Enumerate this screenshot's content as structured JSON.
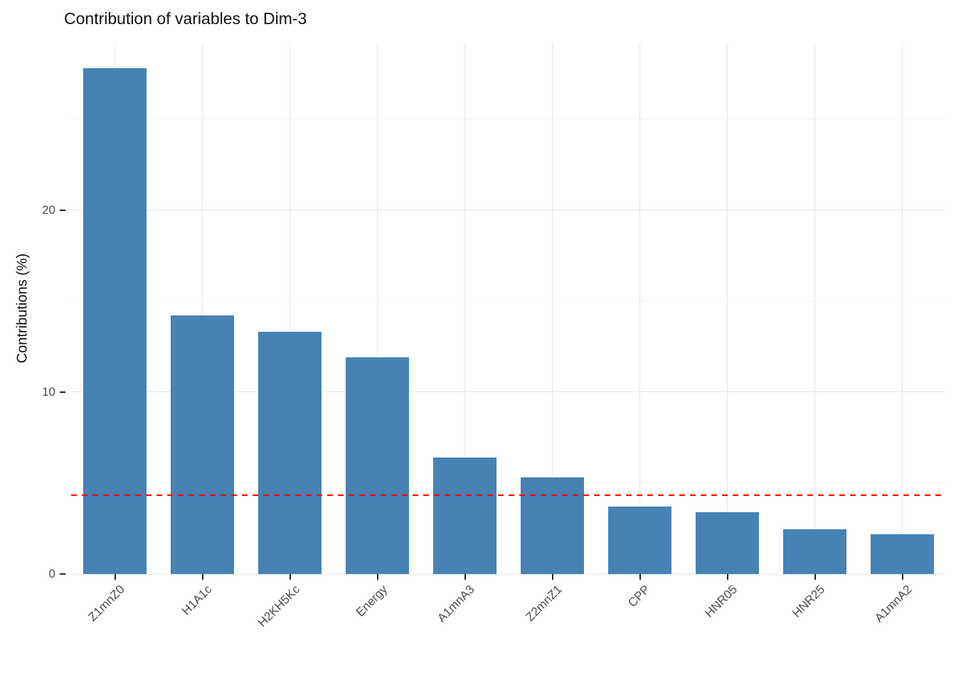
{
  "chart_data": {
    "type": "bar",
    "title": "Contribution of variables to Dim-3",
    "ylabel": "Contributions (%)",
    "xlabel": "",
    "categories": [
      "Z1mnZ0",
      "H1A1c",
      "H2KH5Kc",
      "Energy",
      "A1mnA3",
      "Z2mnZ1",
      "CPP",
      "HNR05",
      "HNR25",
      "A1mnA2"
    ],
    "values": [
      27.8,
      14.2,
      13.3,
      11.9,
      6.4,
      5.3,
      3.7,
      3.4,
      2.45,
      2.2
    ],
    "ylim": [
      0,
      29.2
    ],
    "yticks": [
      0,
      10,
      20
    ],
    "yticks_minor": [
      5,
      15,
      25
    ],
    "reference_line": {
      "value": 4.35,
      "color": "#FF0000",
      "style": "dashed"
    },
    "bar_color": "#4682B4",
    "grid": "on",
    "legend": "none",
    "x_tick_rotation": 45
  },
  "colors": {
    "background": "#FFFFFF",
    "bar": "#4682B4",
    "reference_line": "#FF0000",
    "grid_major": "#E5E5E5",
    "grid_minor": "#F2F2F2",
    "tick_label": "#4D4D4D",
    "title": "#111111",
    "tick_mark": "#222222"
  }
}
